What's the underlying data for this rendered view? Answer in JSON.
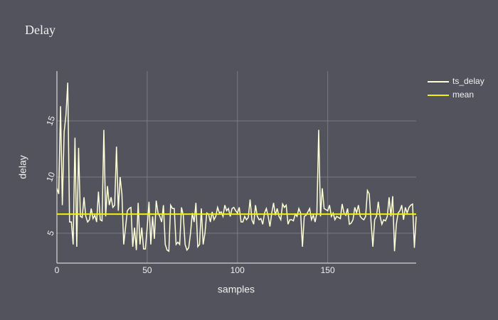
{
  "chart_data": {
    "type": "line",
    "title": "Delay",
    "x_label": "samples",
    "y_label": "delay",
    "xlim": [
      0,
      199
    ],
    "xticks": [
      0,
      50,
      100,
      150
    ],
    "ylim": [
      2.34,
      19.43
    ],
    "yticks": [
      5,
      10,
      15
    ],
    "grid": true,
    "legend_position": "top-right",
    "series": [
      {
        "name": "ts_delay",
        "color": "#ffffd8",
        "x": [
          0,
          1,
          2,
          3,
          4,
          5,
          6,
          7,
          8,
          9,
          10,
          11,
          12,
          13,
          14,
          15,
          16,
          17,
          18,
          19,
          20,
          21,
          22,
          23,
          24,
          25,
          26,
          27,
          28,
          29,
          30,
          31,
          32,
          33,
          34,
          35,
          36,
          37,
          38,
          39,
          40,
          41,
          42,
          43,
          44,
          45,
          46,
          47,
          48,
          49,
          50,
          51,
          52,
          53,
          54,
          55,
          56,
          57,
          58,
          59,
          60,
          61,
          62,
          63,
          64,
          65,
          66,
          67,
          68,
          69,
          70,
          71,
          72,
          73,
          74,
          75,
          76,
          77,
          78,
          79,
          80,
          81,
          82,
          83,
          84,
          85,
          86,
          87,
          88,
          89,
          90,
          91,
          92,
          93,
          94,
          95,
          96,
          97,
          98,
          99,
          100,
          101,
          102,
          103,
          104,
          105,
          106,
          107,
          108,
          109,
          110,
          111,
          112,
          113,
          114,
          115,
          116,
          117,
          118,
          119,
          120,
          121,
          122,
          123,
          124,
          125,
          126,
          127,
          128,
          129,
          130,
          131,
          132,
          133,
          134,
          135,
          136,
          137,
          138,
          139,
          140,
          141,
          142,
          143,
          144,
          145,
          146,
          147,
          148,
          149,
          150,
          151,
          152,
          153,
          154,
          155,
          156,
          157,
          158,
          159,
          160,
          161,
          162,
          163,
          164,
          165,
          166,
          167,
          168,
          169,
          170,
          171,
          172,
          173,
          174,
          175,
          176,
          177,
          178,
          179,
          180,
          181,
          182,
          183,
          184,
          185,
          186,
          187,
          188,
          189,
          190,
          191,
          192,
          193,
          194,
          195,
          196,
          197,
          198,
          199
        ],
        "values": [
          9,
          8.5,
          16.3,
          7.5,
          14,
          15.5,
          18.4,
          6,
          6,
          4,
          13.5,
          3.8,
          12.6,
          6.5,
          6.4,
          8.2,
          6.5,
          6,
          6.2,
          7.2,
          6.3,
          6.6,
          6,
          8.7,
          6.2,
          6.1,
          14.2,
          6.5,
          9.2,
          7.5,
          8.2,
          7.3,
          7.5,
          12.7,
          7,
          10,
          8.5,
          4,
          5.5,
          7,
          7.2,
          7.3,
          3.8,
          5.5,
          3.5,
          7.7,
          4,
          5.5,
          3.6,
          3.6,
          5.5,
          7.8,
          4,
          6.5,
          4.5,
          7.9,
          6.8,
          6.5,
          6,
          7.5,
          4,
          3.5,
          3.4,
          7.5,
          7.2,
          7.2,
          4,
          4.2,
          4,
          7.3,
          6.6,
          4,
          3.5,
          3.7,
          5,
          6.8,
          6,
          7.7,
          3.8,
          4,
          7.2,
          4,
          5,
          6.8,
          6.7,
          6,
          6.9,
          6.2,
          6.5,
          7.3,
          6.8,
          6.9,
          6.5,
          7.5,
          7,
          7.2,
          6.5,
          7.2,
          7.3,
          7,
          6.8,
          7.3,
          6,
          6,
          6.5,
          6.2,
          6.4,
          8,
          6.2,
          5.8,
          7.5,
          6.5,
          6.2,
          6.3,
          5.8,
          6.8,
          7.2,
          6.5,
          5.6,
          6.8,
          7.7,
          6.6,
          7.2,
          6.5,
          6.2,
          7.6,
          7.3,
          7.5,
          5.8,
          6.2,
          6.2,
          6.1,
          6.7,
          6.5,
          7.2,
          6.8,
          3.8,
          6.5,
          6.6,
          6.9,
          7.2,
          6.2,
          6.6,
          6,
          6.8,
          14.2,
          6.5,
          9,
          7.2,
          7.1,
          7,
          7.5,
          6.5,
          6.8,
          6.2,
          6.5,
          6.4,
          6.3,
          7.6,
          6.8,
          6.6,
          7.2,
          5.8,
          5.9,
          6.2,
          7.3,
          6.8,
          7.5,
          6.5,
          6.3,
          6.2,
          6.5,
          8.8,
          8.5,
          6,
          3.8,
          6.2,
          6.5,
          7.8,
          6.5,
          5.8,
          6.2,
          6.1,
          6.5,
          8.2,
          6.5,
          8.3,
          3.4,
          5.8,
          6.8,
          7,
          7.5,
          6.2,
          7.3,
          6.8,
          7.3,
          7.5,
          7.6,
          3.7,
          6.5
        ]
      },
      {
        "name": "mean",
        "color": "#f2f200",
        "x": [
          0,
          199
        ],
        "values": [
          6.7,
          6.7
        ]
      }
    ]
  }
}
